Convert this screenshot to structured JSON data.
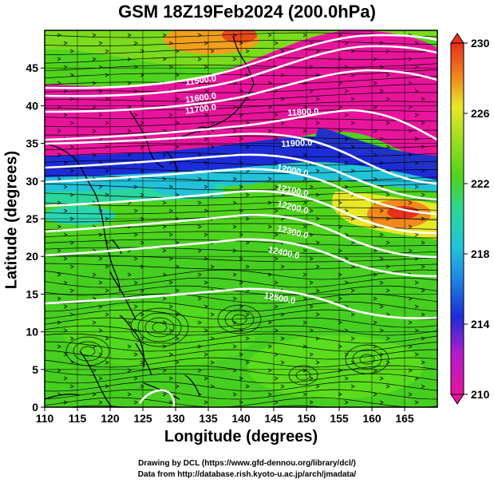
{
  "title": "GSM 18Z19Feb2024 (200.0hPa)",
  "map": {
    "xlabel": "Longitude (degrees)",
    "ylabel": "Latitude (degrees)",
    "x_ticks": [
      "110",
      "115",
      "120",
      "125",
      "130",
      "135",
      "140",
      "145",
      "150",
      "155",
      "160",
      "165"
    ],
    "y_ticks": [
      "0",
      "5",
      "10",
      "15",
      "20",
      "25",
      "30",
      "35",
      "40",
      "45"
    ],
    "lon_range": [
      110,
      170
    ],
    "lat_range": [
      0,
      50
    ],
    "contour_labels": [
      "11500.0",
      "11600.0",
      "11700.0",
      "11800.0",
      "11900.0",
      "12000.0",
      "12100.0",
      "12200.0",
      "12300.0",
      "12400.0",
      "12500.0"
    ],
    "colorbar": {
      "ticks": [
        "230",
        "226",
        "222",
        "218",
        "214",
        "210"
      ],
      "range": [
        210,
        230
      ]
    },
    "colors": {
      "magenta": "#e8149b",
      "blue": "#1c2cd6",
      "cyan": "#22c3d9",
      "green": "#4ed41c",
      "yellow": "#e8e828",
      "orange": "#f08a1c",
      "red": "#e8301c"
    }
  },
  "credits": {
    "line1": "Drawing by DCL (https://www.gfd-dennou.org/library/dcl/)",
    "line2": "Data from http://database.rish.kyoto-u.ac.jp/arch/jmadata/"
  }
}
